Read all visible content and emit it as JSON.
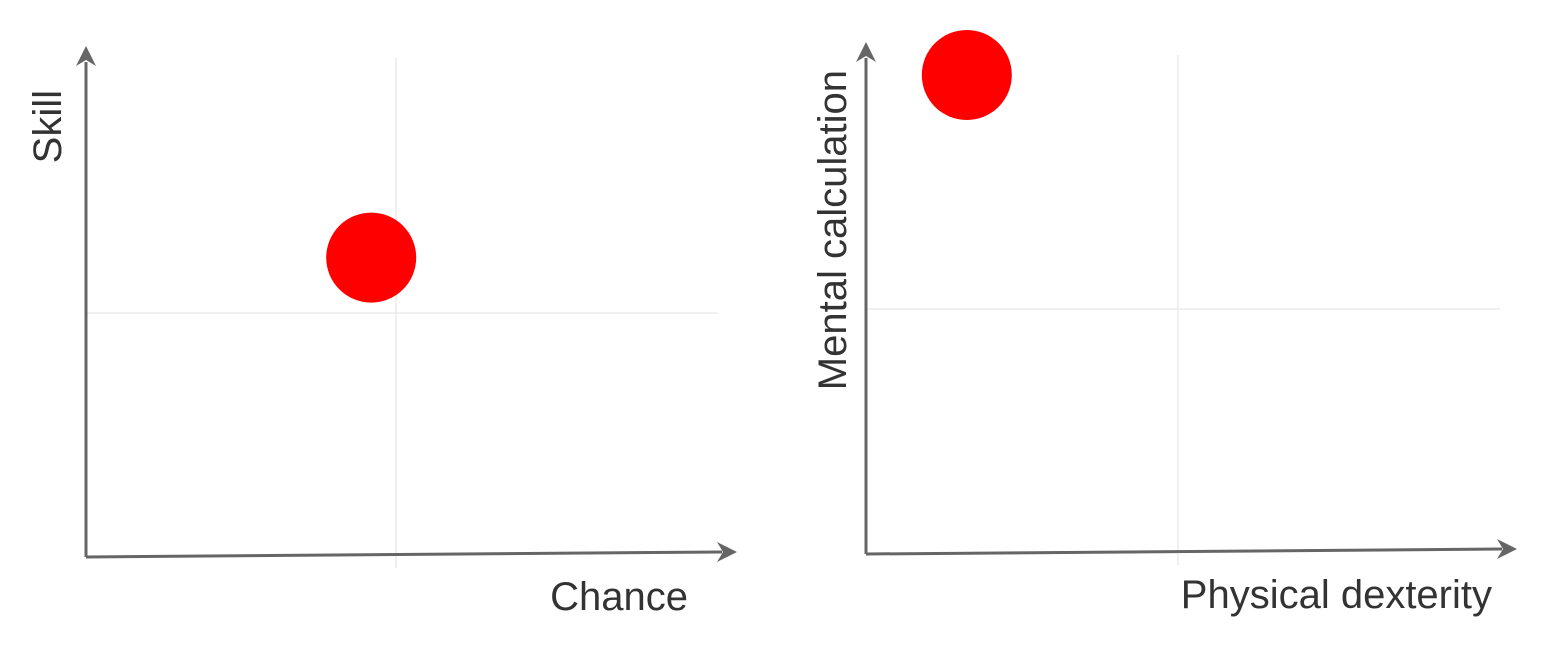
{
  "chart_data": [
    {
      "type": "scatter",
      "title": "",
      "xlabel": "Chance",
      "ylabel": "Skill",
      "xlim": [
        0,
        1
      ],
      "ylim": [
        0,
        1
      ],
      "grid": true,
      "legend": "none",
      "series": [
        {
          "x": [
            0.46
          ],
          "y": [
            0.6
          ],
          "color": "#ff0000"
        }
      ]
    },
    {
      "type": "scatter",
      "title": "",
      "xlabel": "Physical dexterity",
      "ylabel": "Mental calculation",
      "xlim": [
        0,
        1
      ],
      "ylim": [
        0,
        1
      ],
      "grid": true,
      "legend": "none",
      "series": [
        {
          "x": [
            0.16
          ],
          "y": [
            0.96
          ],
          "color": "#ff0000"
        }
      ]
    }
  ]
}
